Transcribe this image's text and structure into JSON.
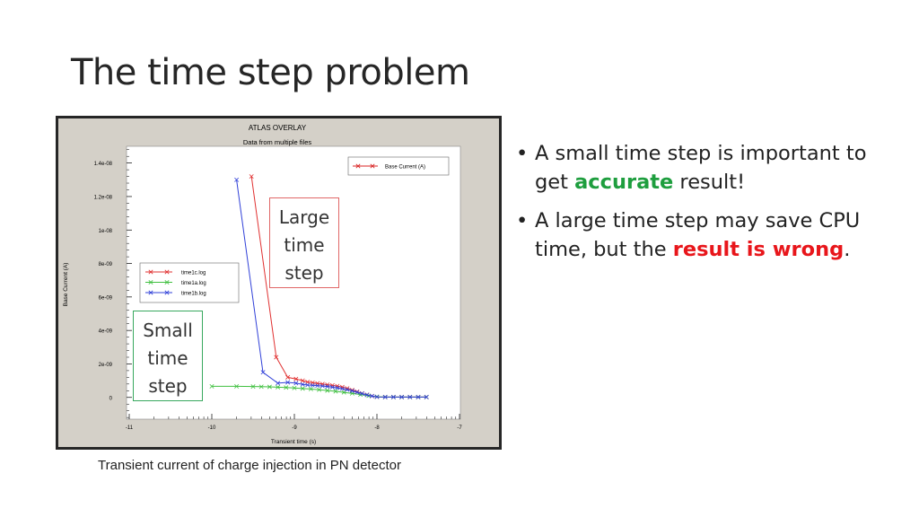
{
  "slide": {
    "title": "The time step problem",
    "caption": "Transient current of charge injection in PN detector",
    "bullets": [
      {
        "pre": "A small time step is important to get ",
        "highlight": "accurate",
        "post": " result!",
        "highlight_color": "#1e9e3e"
      },
      {
        "pre": "A large time step may save CPU time, but the ",
        "highlight": "result is wrong",
        "post": ".",
        "highlight_color": "#e8161b"
      }
    ],
    "callouts": {
      "large": [
        "Large",
        "time",
        "step"
      ],
      "small": [
        "Small",
        "time",
        "step"
      ]
    }
  },
  "chart_data": {
    "type": "line",
    "title": "ATLAS OVERLAY",
    "subtitle": "Data from multiple files",
    "xlabel": "Transient time (s)",
    "ylabel": "Base Current (A)",
    "xscale": "log",
    "xlim": [
      -11,
      -7
    ],
    "ylim": [
      -1.3e-09,
      1.5e-08
    ],
    "xticks": [
      -11,
      -10,
      -9,
      -8,
      -7
    ],
    "xtick_labels": [
      "-11",
      "-10",
      "-9",
      "-8",
      "-7"
    ],
    "yticks": [
      0,
      2e-09,
      4e-09,
      6e-09,
      8e-09,
      1e-08,
      1.2e-08,
      1.4e-08
    ],
    "ytick_labels": [
      "0",
      "2e-09",
      "4e-09",
      "6e-09",
      "8e-09",
      "1e-08",
      "1.2e-08",
      "1.4e-08"
    ],
    "legend_top": {
      "label": "Base Current (A)",
      "color": "#d82020",
      "placement": "top-right"
    },
    "series": [
      {
        "name": "time1c.log",
        "color": "#e03030",
        "x": [
          -9.52,
          -9.22,
          -9.08,
          -8.98,
          -8.9,
          -8.84,
          -8.78,
          -8.72,
          -8.66,
          -8.6,
          -8.54,
          -8.48,
          -8.42,
          -8.36,
          -8.3,
          -8.24,
          -8.18,
          -8.12,
          -8.06,
          -8.0,
          -7.9,
          -7.8,
          -7.7,
          -7.6,
          -7.5,
          -7.4
        ],
        "y": [
          1.32e-08,
          2.4e-09,
          1.2e-09,
          1.1e-09,
          1e-09,
          9.2e-10,
          8.8e-10,
          8.4e-10,
          8e-10,
          7.6e-10,
          7.2e-10,
          6.8e-10,
          6.2e-10,
          5.4e-10,
          4.4e-10,
          3.4e-10,
          2.4e-10,
          1.6e-10,
          8e-11,
          3e-11,
          2e-11,
          2e-11,
          2e-11,
          2e-11,
          2e-11,
          2e-11
        ]
      },
      {
        "name": "time1a.log",
        "color": "#40c040",
        "x": [
          -10.0,
          -9.7,
          -9.5,
          -9.4,
          -9.3,
          -9.2,
          -9.1,
          -9.0,
          -8.9,
          -8.8,
          -8.7,
          -8.6,
          -8.5,
          -8.4,
          -8.3,
          -8.2,
          -8.1,
          -8.0,
          -7.9,
          -7.8,
          -7.7,
          -7.6,
          -7.5,
          -7.4
        ],
        "y": [
          6.6e-10,
          6.6e-10,
          6.5e-10,
          6.4e-10,
          6.3e-10,
          6.1e-10,
          5.9e-10,
          5.6e-10,
          5.3e-10,
          5e-10,
          4.6e-10,
          4.1e-10,
          3.6e-10,
          3e-10,
          2.4e-10,
          1.7e-10,
          1e-10,
          4e-11,
          2e-11,
          2e-11,
          2e-11,
          2e-11,
          2e-11,
          2e-11
        ]
      },
      {
        "name": "time1b.log",
        "color": "#3040d8",
        "x": [
          -9.7,
          -9.38,
          -9.2,
          -9.08,
          -8.98,
          -8.9,
          -8.84,
          -8.78,
          -8.72,
          -8.66,
          -8.6,
          -8.54,
          -8.48,
          -8.42,
          -8.36,
          -8.3,
          -8.24,
          -8.18,
          -8.12,
          -8.06,
          -8.0,
          -7.9,
          -7.8,
          -7.7,
          -7.6,
          -7.5,
          -7.4
        ],
        "y": [
          1.3e-08,
          1.5e-09,
          8.5e-10,
          9e-10,
          8.5e-10,
          7.8e-10,
          7.4e-10,
          7.2e-10,
          7e-10,
          6.8e-10,
          6.5e-10,
          6.1e-10,
          5.7e-10,
          5.2e-10,
          4.6e-10,
          3.9e-10,
          3.1e-10,
          2.3e-10,
          1.5e-10,
          8e-11,
          3e-11,
          2e-11,
          2e-11,
          2e-11,
          2e-11,
          2e-11,
          2e-11
        ]
      }
    ],
    "legend_series_placement": "center-left",
    "grid": false
  }
}
